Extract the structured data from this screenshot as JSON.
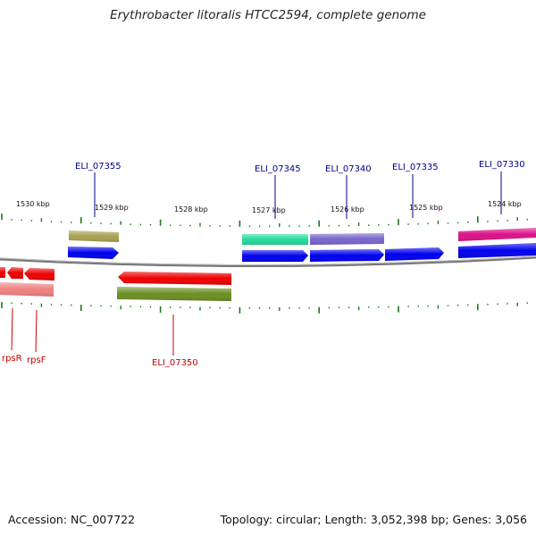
{
  "title": "Erythrobacter litoralis HTCC2594, complete genome",
  "footer": {
    "accession": "Accession: NC_007722",
    "summary": "Topology: circular; Length: 3,052,398 bp; Genes: 3,056"
  },
  "colors": {
    "forward_gene": "#0000ee",
    "reverse_gene": "#ee0000",
    "tick": "#1a7a1a",
    "backbone": "#777777",
    "forward_label": "#00008b",
    "reverse_label": "#cc0000"
  },
  "scale_labels": [
    "1530 kbp",
    "1529 kbp",
    "1528 kbp",
    "1527 kbp",
    "1526 kbp",
    "1525 kbp",
    "1524 kbp"
  ],
  "forward_genes": [
    {
      "label": "ELI_07355",
      "feature_color": "#a8a050"
    },
    {
      "label": "ELI_07345",
      "feature_color": "#22dd99"
    },
    {
      "label": "ELI_07340",
      "feature_color": "#7766cc"
    },
    {
      "label": "ELI_07335",
      "feature_color": ""
    },
    {
      "label": "ELI_07330",
      "feature_color": "#dd1188"
    }
  ],
  "reverse_genes": [
    {
      "label": "rpsR",
      "feature_color": "#f08080"
    },
    {
      "label": "rpsF",
      "feature_color": "#f08080"
    },
    {
      "label": "ELI_07350",
      "feature_color": "#6b8e23"
    }
  ]
}
